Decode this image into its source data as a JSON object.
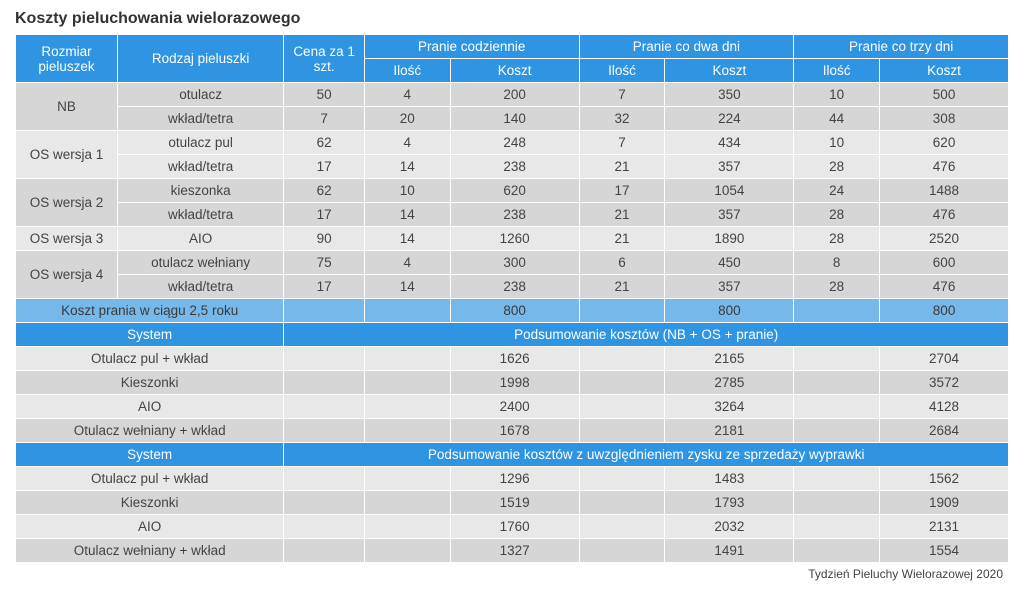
{
  "title": "Koszty pieluchowania wielorazowego",
  "footer": "Tydzień Pieluchy Wielorazowej 2020",
  "header": {
    "col0": "Rozmiar pieluszek",
    "col1": "Rodzaj pieluszki",
    "col2": "Cena za 1 szt.",
    "grp_daily": "Pranie codziennie",
    "grp_2days": "Pranie co dwa dni",
    "grp_3days": "Pranie co trzy dni",
    "qty": "Ilość",
    "cost": "Koszt"
  },
  "rows": [
    {
      "size": "NB",
      "type": "otulacz",
      "price": "50",
      "d_q": "4",
      "d_c": "200",
      "t_q": "7",
      "t_c": "350",
      "r_q": "10",
      "r_c": "500"
    },
    {
      "size": "",
      "type": "wkład/tetra",
      "price": "7",
      "d_q": "20",
      "d_c": "140",
      "t_q": "32",
      "t_c": "224",
      "r_q": "44",
      "r_c": "308"
    },
    {
      "size": "OS wersja 1",
      "type": "otulacz pul",
      "price": "62",
      "d_q": "4",
      "d_c": "248",
      "t_q": "7",
      "t_c": "434",
      "r_q": "10",
      "r_c": "620"
    },
    {
      "size": "",
      "type": "wkład/tetra",
      "price": "17",
      "d_q": "14",
      "d_c": "238",
      "t_q": "21",
      "t_c": "357",
      "r_q": "28",
      "r_c": "476"
    },
    {
      "size": "OS wersja 2",
      "type": "kieszonka",
      "price": "62",
      "d_q": "10",
      "d_c": "620",
      "t_q": "17",
      "t_c": "1054",
      "r_q": "24",
      "r_c": "1488"
    },
    {
      "size": "",
      "type": "wkład/tetra",
      "price": "17",
      "d_q": "14",
      "d_c": "238",
      "t_q": "21",
      "t_c": "357",
      "r_q": "28",
      "r_c": "476"
    },
    {
      "size": "OS wersja 3",
      "type": "AIO",
      "price": "90",
      "d_q": "14",
      "d_c": "1260",
      "t_q": "21",
      "t_c": "1890",
      "r_q": "28",
      "r_c": "2520"
    },
    {
      "size": "OS wersja 4",
      "type": "otulacz wełniany",
      "price": "75",
      "d_q": "4",
      "d_c": "300",
      "t_q": "6",
      "t_c": "450",
      "r_q": "8",
      "r_c": "600"
    },
    {
      "size": "",
      "type": "wkład/tetra",
      "price": "17",
      "d_q": "14",
      "d_c": "238",
      "t_q": "21",
      "t_c": "357",
      "r_q": "28",
      "r_c": "476"
    }
  ],
  "washing_row": {
    "label": "Koszt prania w ciągu 2,5 roku",
    "daily": "800",
    "two": "800",
    "three": "800"
  },
  "section1": {
    "left": "System",
    "right": "Podsumowanie kosztów (NB + OS + pranie)"
  },
  "sum1": [
    {
      "label": "Otulacz pul + wkład",
      "daily": "1626",
      "two": "2165",
      "three": "2704"
    },
    {
      "label": "Kieszonki",
      "daily": "1998",
      "two": "2785",
      "three": "3572"
    },
    {
      "label": "AIO",
      "daily": "2400",
      "two": "3264",
      "three": "4128"
    },
    {
      "label": "Otulacz wełniany + wkład",
      "daily": "1678",
      "two": "2181",
      "three": "2684"
    }
  ],
  "section2": {
    "left": "System",
    "right": "Podsumowanie kosztów z uwzględnieniem zysku ze sprzedaży wyprawki"
  },
  "sum2": [
    {
      "label": "Otulacz pul + wkład",
      "daily": "1296",
      "two": "1483",
      "three": "1562"
    },
    {
      "label": "Kieszonki",
      "daily": "1519",
      "two": "1793",
      "three": "1909"
    },
    {
      "label": "AIO",
      "daily": "1760",
      "two": "2032",
      "three": "2131"
    },
    {
      "label": "Otulacz wełniany + wkład",
      "daily": "1327",
      "two": "1491",
      "three": "1554"
    }
  ],
  "layout": {
    "row_spans": [
      2,
      2,
      2,
      1,
      2
    ],
    "single_row_indices": [
      6
    ]
  }
}
